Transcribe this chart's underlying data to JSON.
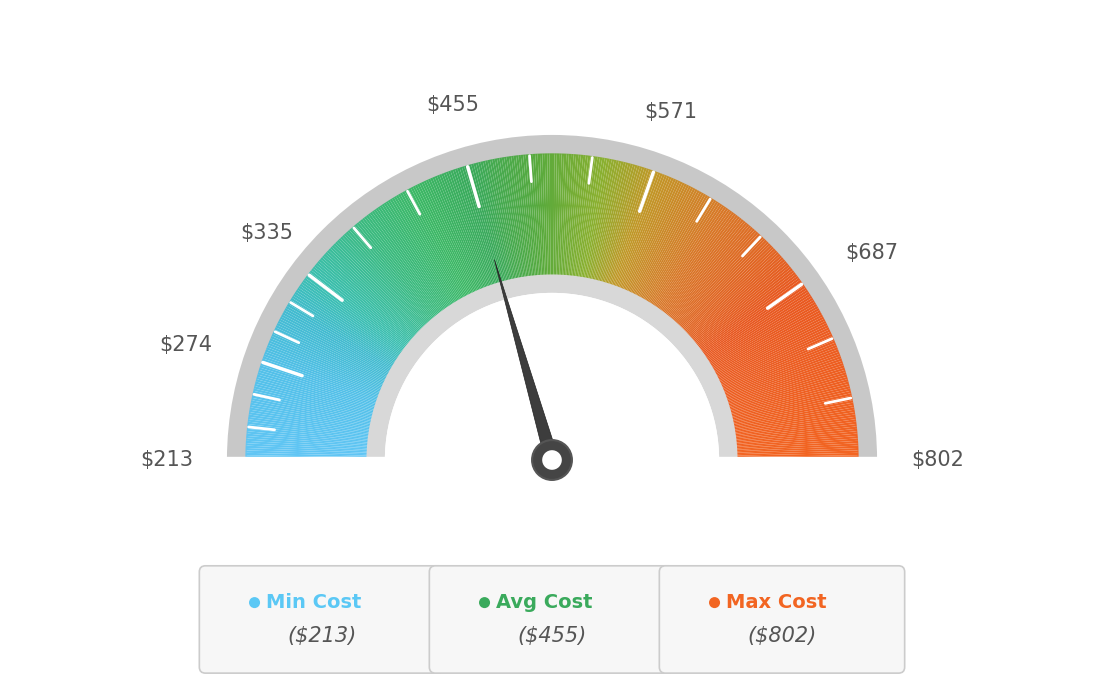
{
  "min_val": 213,
  "max_val": 802,
  "avg_val": 455,
  "needle_value": 455,
  "tick_values": [
    213,
    274,
    335,
    455,
    571,
    687,
    802
  ],
  "legend": [
    {
      "label": "Min Cost",
      "value": "($213)",
      "color": "#5bc8f5"
    },
    {
      "label": "Avg Cost",
      "value": "($455)",
      "color": "#3aaa5c"
    },
    {
      "label": "Max Cost",
      "value": "($802)",
      "color": "#f26522"
    }
  ],
  "bg_color": "#ffffff",
  "color_stops": [
    [
      213,
      "#62c6f5"
    ],
    [
      274,
      "#52c0e8"
    ],
    [
      310,
      "#42bbd0"
    ],
    [
      335,
      "#3bbfb0"
    ],
    [
      380,
      "#3bba80"
    ],
    [
      420,
      "#3cb865"
    ],
    [
      455,
      "#3aaa5c"
    ],
    [
      500,
      "#5aaa3c"
    ],
    [
      540,
      "#8ab030"
    ],
    [
      571,
      "#c09828"
    ],
    [
      620,
      "#d87828"
    ],
    [
      687,
      "#e85820"
    ],
    [
      802,
      "#f26522"
    ]
  ],
  "outer_trim_color": "#c8c8c8",
  "inner_trim_color": "#d8d8d8",
  "needle_color": "#3d3d3d",
  "label_color": "#555555"
}
